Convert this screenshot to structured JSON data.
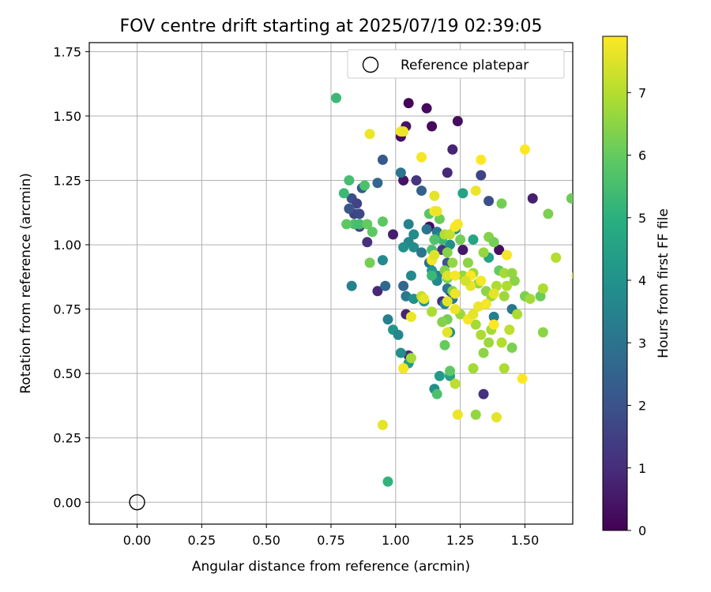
{
  "chart_data": {
    "type": "scatter",
    "title": "FOV centre drift starting at 2025/07/19 02:39:05",
    "xlabel": "Angular distance from reference (arcmin)",
    "ylabel": "Rotation from reference (arcmin)",
    "colorbar_label": "Hours from first FF file",
    "colormap": "viridis",
    "xlim": [
      -0.185,
      1.685
    ],
    "ylim": [
      -0.085,
      1.785
    ],
    "clim": [
      0,
      7.9
    ],
    "x_ticks": [
      "0.00",
      "0.25",
      "0.50",
      "0.75",
      "1.00",
      "1.25",
      "1.50"
    ],
    "y_ticks": [
      "0.00",
      "0.25",
      "0.50",
      "0.75",
      "1.00",
      "1.25",
      "1.50",
      "1.75"
    ],
    "colorbar_ticks": [
      "0",
      "1",
      "2",
      "3",
      "4",
      "5",
      "6",
      "7"
    ],
    "grid": true,
    "legend_position": "top-right",
    "legend": [
      {
        "label": "Reference platepar",
        "marker": "open-circle"
      }
    ],
    "reference_point": {
      "x": 0.0,
      "y": 0.0
    },
    "series": [
      {
        "name": "",
        "points": [
          [
            1.05,
            1.55,
            0.1
          ],
          [
            1.12,
            1.53,
            0.2
          ],
          [
            1.24,
            1.48,
            0.3
          ],
          [
            1.14,
            1.46,
            0.2
          ],
          [
            1.04,
            1.46,
            0.4
          ],
          [
            1.02,
            1.42,
            0.3
          ],
          [
            1.22,
            1.37,
            0.8
          ],
          [
            1.03,
            1.25,
            0.4
          ],
          [
            1.2,
            1.28,
            0.9
          ],
          [
            1.33,
            1.27,
            1.6
          ],
          [
            1.08,
            1.25,
            1.2
          ],
          [
            1.36,
            1.17,
            1.9
          ],
          [
            0.87,
            1.22,
            2.3
          ],
          [
            0.83,
            1.18,
            1.9
          ],
          [
            0.85,
            1.16,
            1.6
          ],
          [
            0.84,
            1.12,
            1.5
          ],
          [
            0.86,
            1.12,
            1.7
          ],
          [
            0.86,
            1.07,
            1.6
          ],
          [
            0.82,
            1.14,
            2.1
          ],
          [
            0.89,
            1.01,
            1.1
          ],
          [
            0.99,
            1.04,
            0.6
          ],
          [
            1.13,
            1.07,
            0.3
          ],
          [
            1.26,
            0.98,
            0.5
          ],
          [
            1.4,
            0.98,
            0.3
          ],
          [
            1.53,
            1.18,
            0.7
          ],
          [
            1.18,
            0.98,
            1.2
          ],
          [
            1.2,
            0.93,
            2.1
          ],
          [
            1.21,
            0.82,
            1.6
          ],
          [
            1.18,
            0.78,
            1.0
          ],
          [
            0.93,
            0.82,
            0.9
          ],
          [
            1.04,
            0.73,
            0.8
          ],
          [
            1.05,
            0.57,
            1.0
          ],
          [
            1.34,
            0.42,
            1.1
          ],
          [
            1.26,
            1.2,
            4.5
          ],
          [
            0.95,
            1.33,
            2.2
          ],
          [
            1.02,
            1.28,
            3.1
          ],
          [
            0.93,
            1.24,
            2.6
          ],
          [
            1.1,
            1.21,
            2.4
          ],
          [
            1.12,
            1.06,
            3.0
          ],
          [
            1.16,
            1.05,
            3.2
          ],
          [
            1.05,
            1.08,
            3.5
          ],
          [
            1.07,
            1.04,
            3.8
          ],
          [
            1.05,
            1.01,
            3.6
          ],
          [
            1.07,
            0.99,
            3.8
          ],
          [
            1.03,
            0.99,
            4.0
          ],
          [
            1.1,
            0.97,
            3.1
          ],
          [
            1.13,
            0.93,
            2.9
          ],
          [
            1.16,
            0.88,
            3.3
          ],
          [
            1.14,
            0.9,
            4.2
          ],
          [
            1.06,
            0.88,
            3.7
          ],
          [
            1.03,
            0.84,
            2.6
          ],
          [
            0.96,
            0.84,
            2.7
          ],
          [
            0.95,
            0.94,
            3.7
          ],
          [
            0.83,
            0.84,
            3.4
          ],
          [
            1.04,
            0.8,
            3.2
          ],
          [
            1.07,
            0.79,
            4.0
          ],
          [
            1.11,
            0.78,
            4.1
          ],
          [
            1.19,
            0.77,
            3.6
          ],
          [
            0.97,
            0.71,
            3.4
          ],
          [
            0.99,
            0.67,
            4.1
          ],
          [
            1.01,
            0.65,
            3.6
          ],
          [
            1.02,
            0.58,
            3.9
          ],
          [
            1.05,
            0.54,
            4.3
          ],
          [
            1.17,
            0.49,
            4.3
          ],
          [
            1.21,
            0.49,
            4.5
          ],
          [
            1.15,
            0.44,
            3.9
          ],
          [
            1.16,
            0.86,
            3.7
          ],
          [
            1.2,
            0.83,
            3.2
          ],
          [
            1.22,
            0.79,
            3.1
          ],
          [
            1.38,
            0.72,
            3.3
          ],
          [
            1.45,
            0.75,
            3.1
          ],
          [
            1.21,
            0.66,
            3.9
          ],
          [
            1.23,
            1.06,
            4.2
          ],
          [
            1.21,
            1.0,
            3.9
          ],
          [
            1.17,
            1.03,
            3.8
          ],
          [
            1.36,
            0.95,
            4.5
          ],
          [
            1.3,
            1.02,
            4.6
          ],
          [
            1.18,
            1.02,
            5.3
          ],
          [
            0.82,
            1.25,
            5.5
          ],
          [
            0.8,
            1.2,
            5.3
          ],
          [
            0.88,
            1.23,
            5.6
          ],
          [
            0.77,
            1.57,
            5.3
          ],
          [
            0.84,
            1.08,
            5.6
          ],
          [
            0.81,
            1.08,
            5.9
          ],
          [
            0.86,
            1.08,
            5.5
          ],
          [
            0.89,
            1.08,
            6.0
          ],
          [
            0.91,
            1.05,
            5.9
          ],
          [
            0.95,
            1.09,
            5.9
          ],
          [
            0.9,
            0.93,
            6.2
          ],
          [
            1.15,
            1.02,
            5.7
          ],
          [
            1.13,
            1.12,
            5.8
          ],
          [
            1.17,
            1.1,
            6.1
          ],
          [
            1.14,
            0.98,
            5.6
          ],
          [
            1.14,
            0.88,
            5.3
          ],
          [
            1.2,
            0.97,
            6.4
          ],
          [
            1.25,
            1.02,
            6.2
          ],
          [
            1.22,
            0.93,
            6.6
          ],
          [
            1.19,
            0.9,
            6.4
          ],
          [
            1.2,
            0.87,
            6.3
          ],
          [
            1.22,
            0.82,
            6.4
          ],
          [
            1.26,
            0.88,
            6.6
          ],
          [
            1.28,
            0.93,
            6.5
          ],
          [
            1.3,
            0.89,
            6.7
          ],
          [
            1.32,
            0.85,
            6.6
          ],
          [
            1.35,
            0.82,
            6.5
          ],
          [
            1.37,
            0.8,
            6.7
          ],
          [
            1.39,
            0.84,
            6.9
          ],
          [
            1.34,
            0.97,
            6.6
          ],
          [
            1.36,
            1.03,
            6.4
          ],
          [
            1.38,
            1.01,
            6.2
          ],
          [
            1.4,
            0.9,
            6.0
          ],
          [
            1.42,
            0.89,
            6.8
          ],
          [
            1.45,
            0.89,
            6.6
          ],
          [
            1.46,
            0.86,
            6.5
          ],
          [
            1.43,
            0.84,
            6.9
          ],
          [
            1.42,
            0.8,
            6.7
          ],
          [
            1.47,
            0.73,
            6.9
          ],
          [
            1.5,
            0.8,
            6.3
          ],
          [
            1.52,
            0.79,
            6.8
          ],
          [
            1.56,
            0.8,
            6.1
          ],
          [
            1.57,
            0.83,
            6.9
          ],
          [
            1.57,
            0.66,
            6.5
          ],
          [
            1.62,
            0.95,
            7.0
          ],
          [
            1.59,
            1.12,
            6.3
          ],
          [
            1.68,
            1.18,
            6.1
          ],
          [
            1.41,
            1.16,
            6.2
          ],
          [
            1.36,
            0.62,
            6.7
          ],
          [
            1.37,
            0.67,
            6.8
          ],
          [
            1.41,
            0.62,
            7.0
          ],
          [
            1.44,
            0.67,
            7.1
          ],
          [
            1.45,
            0.6,
            6.3
          ],
          [
            1.42,
            0.52,
            6.9
          ],
          [
            1.3,
            0.52,
            6.8
          ],
          [
            1.31,
            0.34,
            6.6
          ],
          [
            1.34,
            0.58,
            6.5
          ],
          [
            1.33,
            0.65,
            6.9
          ],
          [
            1.31,
            0.69,
            6.8
          ],
          [
            1.25,
            0.73,
            6.7
          ],
          [
            1.2,
            0.71,
            6.2
          ],
          [
            1.18,
            0.7,
            6.4
          ],
          [
            1.19,
            0.61,
            6.0
          ],
          [
            1.16,
            0.42,
            5.6
          ],
          [
            1.21,
            0.51,
            5.9
          ],
          [
            1.23,
            0.46,
            7.1
          ],
          [
            1.14,
            0.74,
            6.9
          ],
          [
            1.1,
            0.8,
            7.2
          ],
          [
            1.11,
            0.79,
            7.6
          ],
          [
            1.06,
            0.56,
            6.8
          ],
          [
            1.03,
            0.52,
            7.1
          ],
          [
            0.97,
            0.08,
            5.1
          ],
          [
            0.95,
            0.3,
            7.6
          ],
          [
            1.03,
            0.52,
            7.8
          ],
          [
            1.06,
            0.72,
            7.7
          ],
          [
            1.24,
            0.34,
            7.7
          ],
          [
            1.39,
            0.33,
            7.6
          ],
          [
            1.49,
            0.48,
            7.9
          ],
          [
            1.28,
            0.71,
            7.8
          ],
          [
            1.3,
            0.73,
            7.6
          ],
          [
            1.32,
            0.76,
            7.7
          ],
          [
            1.35,
            0.77,
            7.8
          ],
          [
            1.38,
            0.69,
            7.9
          ],
          [
            1.38,
            0.81,
            7.6
          ],
          [
            1.33,
            0.86,
            7.8
          ],
          [
            1.29,
            0.84,
            7.6
          ],
          [
            1.29,
            0.88,
            7.9
          ],
          [
            1.27,
            0.86,
            7.4
          ],
          [
            1.23,
            0.81,
            7.7
          ],
          [
            1.2,
            0.78,
            7.6
          ],
          [
            1.2,
            0.88,
            7.5
          ],
          [
            1.23,
            0.88,
            7.8
          ],
          [
            1.2,
            0.66,
            7.6
          ],
          [
            1.23,
            0.75,
            7.7
          ],
          [
            1.14,
            0.94,
            7.8
          ],
          [
            1.15,
            0.96,
            7.5
          ],
          [
            1.15,
            1.13,
            7.8
          ],
          [
            1.16,
            1.13,
            7.7
          ],
          [
            1.15,
            1.19,
            7.6
          ],
          [
            1.19,
            1.04,
            7.0
          ],
          [
            1.21,
            1.04,
            7.2
          ],
          [
            1.23,
            1.07,
            7.9
          ],
          [
            1.24,
            1.08,
            7.8
          ],
          [
            1.31,
            1.21,
            7.7
          ],
          [
            1.33,
            1.33,
            7.9
          ],
          [
            1.43,
            0.96,
            7.8
          ],
          [
            1.5,
            1.37,
            7.9
          ],
          [
            1.7,
            0.88,
            7.7
          ],
          [
            1.02,
            1.44,
            7.8
          ],
          [
            1.03,
            1.44,
            7.7
          ],
          [
            0.9,
            1.43,
            7.7
          ],
          [
            1.1,
            1.34,
            7.8
          ]
        ]
      }
    ]
  }
}
